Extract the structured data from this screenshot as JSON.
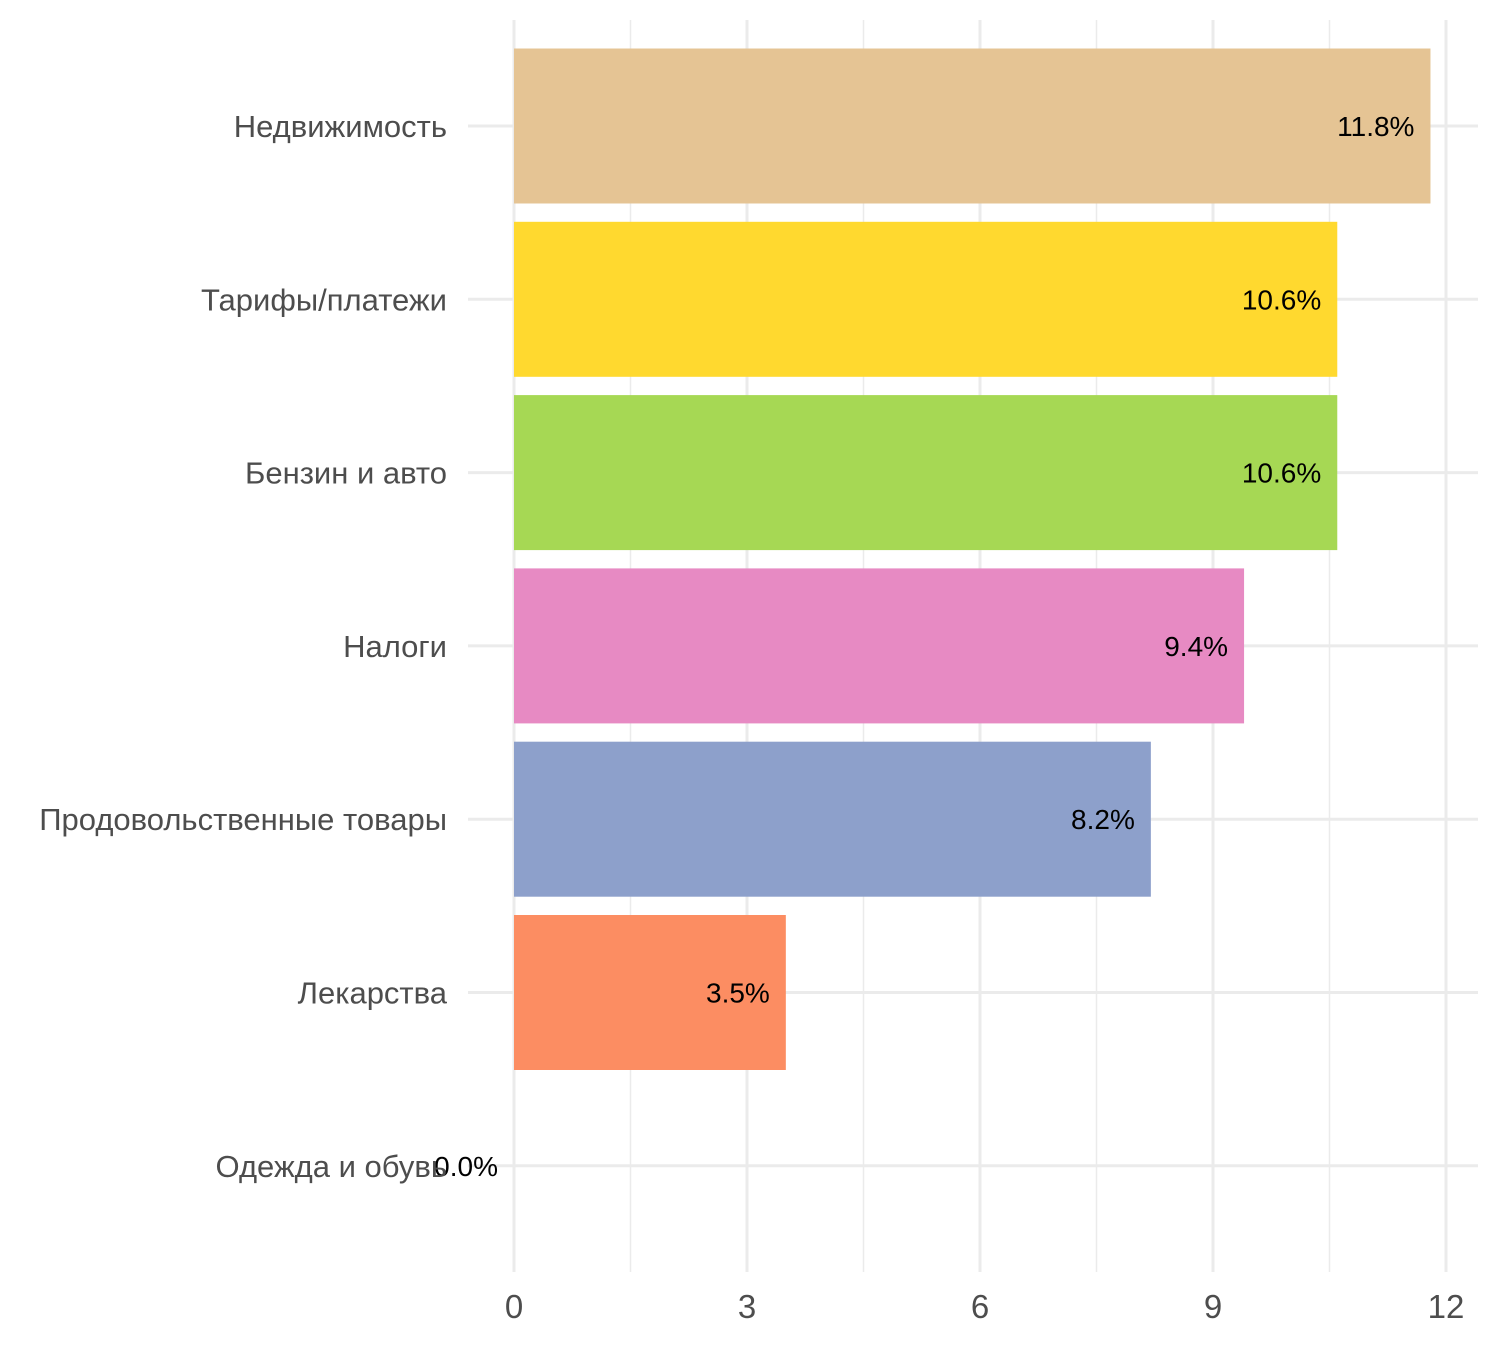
{
  "chart_data": {
    "type": "bar",
    "orientation": "horizontal",
    "title": "",
    "xlabel": "",
    "ylabel": "",
    "categories": [
      "Недвижимость",
      "Тарифы/платежи",
      "Бензин и авто",
      "Налоги",
      "Продовольственные товары",
      "Лекарства",
      "Одежда и обувь"
    ],
    "values": [
      11.8,
      10.6,
      10.6,
      9.4,
      8.2,
      3.5,
      0.0
    ],
    "data_labels": [
      "11.8%",
      "10.6%",
      "10.6%",
      "9.4%",
      "8.2%",
      "3.5%",
      "0.0%"
    ],
    "colors": [
      "#E5C494",
      "#FFD92F",
      "#A6D854",
      "#E78AC3",
      "#8DA0CB",
      "#FC8D62",
      "#66C2A5"
    ],
    "xlim": [
      0,
      12
    ],
    "ticks": [
      0,
      3,
      6,
      9,
      12
    ],
    "tick_labels": [
      "0",
      "3",
      "6",
      "9",
      "12"
    ],
    "grid": true,
    "legend": "none"
  }
}
